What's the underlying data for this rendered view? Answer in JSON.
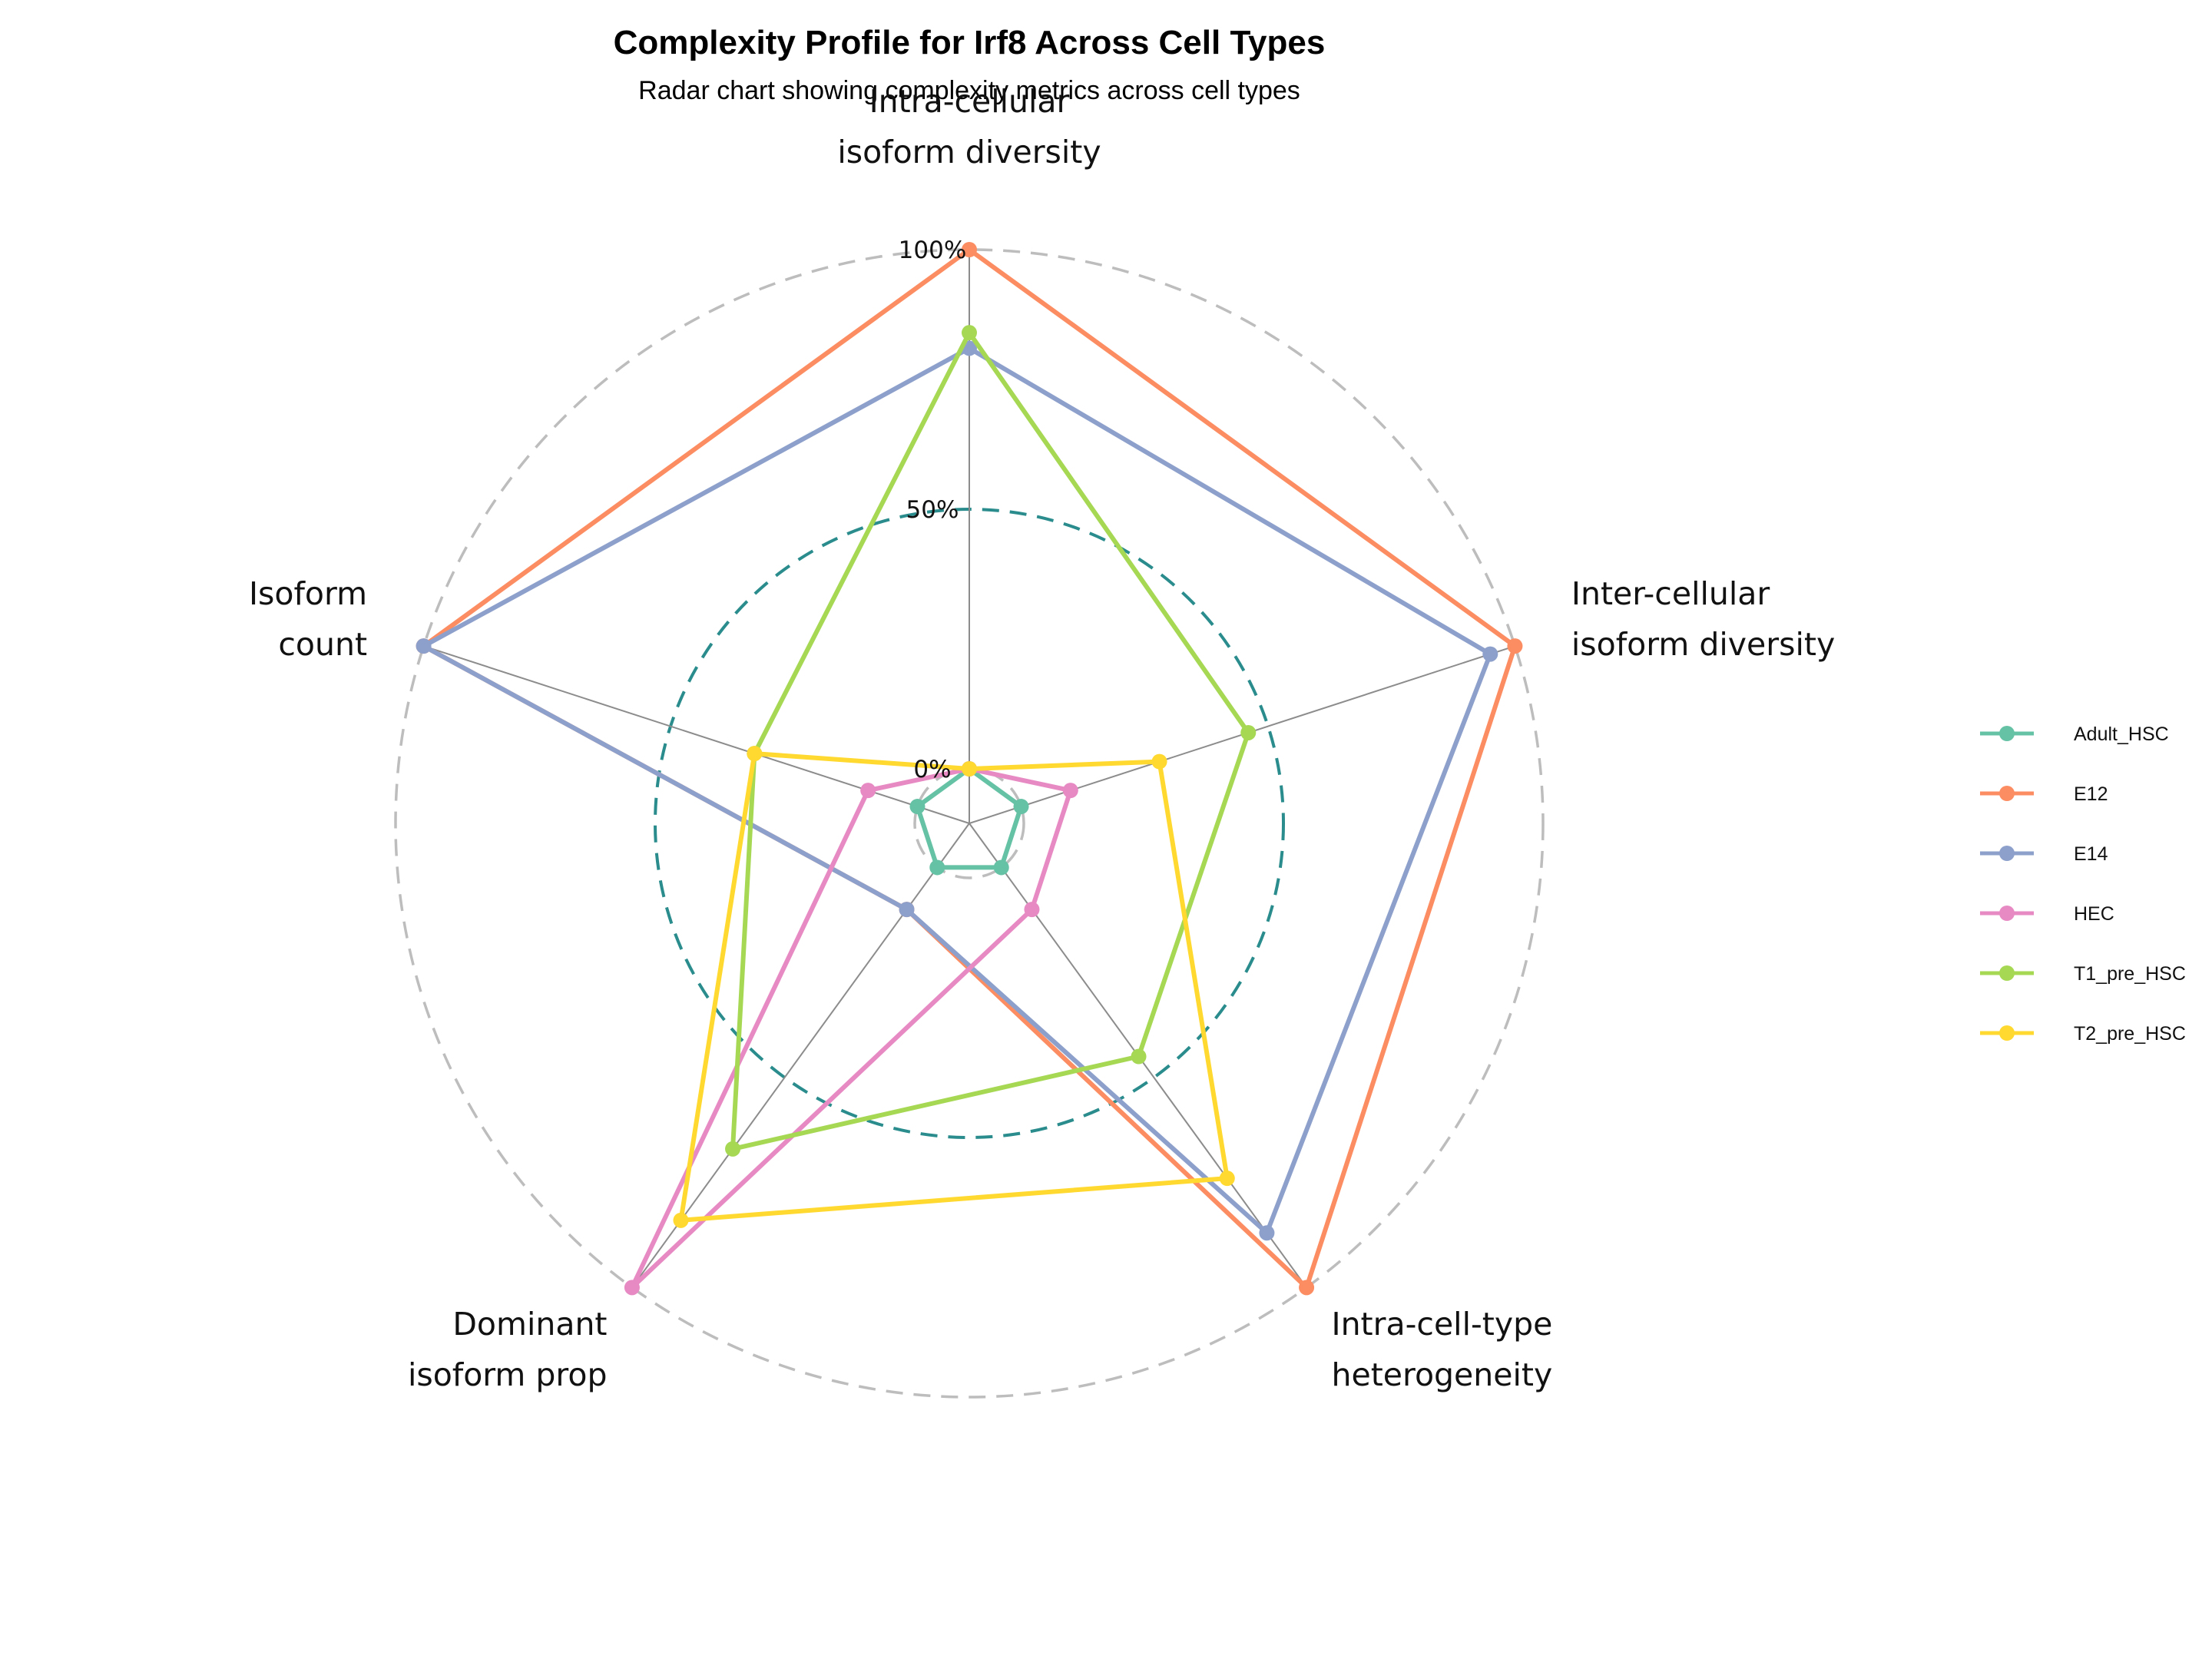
{
  "chart_data": {
    "type": "radar",
    "title": "Complexity Profile for Irf8 Across Cell Types",
    "subtitle": "Radar chart showing complexity metrics across cell types",
    "axes": [
      [
        "Intra-cellular",
        "isoform diversity"
      ],
      [
        "Inter-cellular",
        "isoform diversity"
      ],
      [
        "Intra-cell-type",
        "heterogeneity"
      ],
      [
        "Dominant",
        "isoform prop"
      ],
      [
        "Isoform",
        "count"
      ]
    ],
    "tick_labels": [
      "0%",
      "50%",
      "100%"
    ],
    "range": [
      0,
      1
    ],
    "grid_levels": [
      0,
      0.5,
      1
    ],
    "legend_position": "right",
    "series": [
      {
        "name": "Adult_HSC",
        "color": "#66C2A5",
        "values": [
          0,
          0,
          0,
          0,
          0
        ]
      },
      {
        "name": "E12",
        "color": "#FC8D62",
        "values": [
          1.0,
          1.0,
          1.0,
          0.1,
          1.0
        ]
      },
      {
        "name": "E14",
        "color": "#8DA0CB",
        "values": [
          0.81,
          0.95,
          0.87,
          0.1,
          1.0
        ]
      },
      {
        "name": "HEC",
        "color": "#E78AC3",
        "values": [
          0.0,
          0.1,
          0.1,
          1.0,
          0.1
        ]
      },
      {
        "name": "T1_pre_HSC",
        "color": "#A6D854",
        "values": [
          0.84,
          0.46,
          0.45,
          0.67,
          0.33
        ]
      },
      {
        "name": "T2_pre_HSC",
        "color": "#FFD92F",
        "values": [
          0.0,
          0.28,
          0.74,
          0.84,
          0.33
        ]
      }
    ]
  }
}
